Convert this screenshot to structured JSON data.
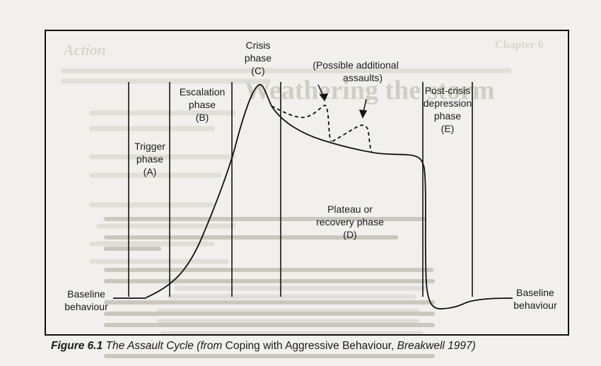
{
  "figure": {
    "caption": {
      "figure_number": "Figure 6.1",
      "title": "The Assault Cycle (from",
      "book_title": "Coping with Aggressive Behaviour,",
      "source": "Breakwell 1997)"
    }
  },
  "diagram": {
    "baseline_left_line1": "Baseline",
    "baseline_left_line2": "behaviour",
    "baseline_right_line1": "Baseline",
    "baseline_right_line2": "behaviour",
    "trigger": [
      "Trigger",
      "phase",
      "(A)"
    ],
    "escalation": [
      "Escalation",
      "phase",
      "(B)"
    ],
    "crisis": [
      "Crisis",
      "phase",
      "(C)"
    ],
    "plateau": [
      "Plateau or",
      "recovery phase",
      "(D)"
    ],
    "post_crisis": [
      "Post-crisis",
      "depression",
      "phase",
      "(E)"
    ],
    "possible_assaults": [
      "(Possible additional",
      "assaults)"
    ]
  },
  "background_text": {
    "heading_1": "Action",
    "heading_2": "Chapter 6",
    "title": "Weathering the storm"
  }
}
